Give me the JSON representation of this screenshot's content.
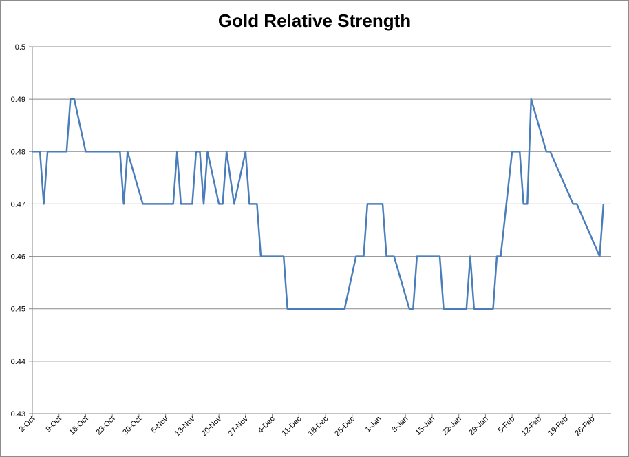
{
  "chart_data": {
    "type": "line",
    "title": "Gold Relative Strength",
    "xlabel": "",
    "ylabel": "",
    "ylim": [
      0.43,
      0.5
    ],
    "y_ticks": [
      "0.43",
      "0.44",
      "0.45",
      "0.46",
      "0.47",
      "0.48",
      "0.49",
      "0.5"
    ],
    "x_range": [
      "2-Oct",
      "3-Mar"
    ],
    "x_ticks": [
      "2-Oct",
      "9-Oct",
      "16-Oct",
      "23-Oct",
      "30-Oct",
      "6-Nov",
      "13-Nov",
      "20-Nov",
      "27-Nov",
      "4-Dec",
      "11-Dec",
      "18-Dec",
      "25-Dec",
      "1-Jan",
      "8-Jan",
      "15-Jan",
      "22-Jan",
      "29-Jan",
      "5-Feb",
      "12-Feb",
      "19-Feb",
      "26-Feb"
    ],
    "grid": true,
    "legend": "none",
    "line_color": "#4a7ebb",
    "series": [
      {
        "x": [
          "2-Oct",
          "4-Oct",
          "5-Oct",
          "6-Oct",
          "11-Oct",
          "12-Oct",
          "13-Oct",
          "16-Oct",
          "25-Oct",
          "26-Oct",
          "27-Oct",
          "31-Oct",
          "8-Nov",
          "9-Nov",
          "10-Nov",
          "13-Nov",
          "14-Nov",
          "15-Nov",
          "16-Nov",
          "17-Nov",
          "20-Nov",
          "21-Nov",
          "22-Nov",
          "24-Nov",
          "27-Nov",
          "28-Nov",
          "30-Nov",
          "1-Dec",
          "7-Dec",
          "8-Dec",
          "23-Dec",
          "26-Dec",
          "28-Dec",
          "29-Dec",
          "2-Jan",
          "3-Jan",
          "5-Jan",
          "9-Jan",
          "10-Jan",
          "11-Jan",
          "17-Jan",
          "18-Jan",
          "24-Jan",
          "25-Jan",
          "26-Jan",
          "31-Jan",
          "1-Feb",
          "2-Feb",
          "5-Feb",
          "6-Feb",
          "7-Feb",
          "8-Feb",
          "9-Feb",
          "10-Feb",
          "14-Feb",
          "15-Feb",
          "21-Feb",
          "22-Feb",
          "28-Feb",
          "1-Mar"
        ],
        "values": [
          0.48,
          0.48,
          0.47,
          0.48,
          0.48,
          0.49,
          0.49,
          0.48,
          0.48,
          0.47,
          0.48,
          0.47,
          0.47,
          0.48,
          0.47,
          0.47,
          0.48,
          0.48,
          0.47,
          0.48,
          0.47,
          0.47,
          0.48,
          0.47,
          0.48,
          0.47,
          0.47,
          0.46,
          0.46,
          0.45,
          0.45,
          0.46,
          0.46,
          0.47,
          0.47,
          0.46,
          0.46,
          0.45,
          0.45,
          0.46,
          0.46,
          0.45,
          0.45,
          0.46,
          0.45,
          0.45,
          0.46,
          0.46,
          0.48,
          0.48,
          0.48,
          0.47,
          0.47,
          0.49,
          0.48,
          0.48,
          0.47,
          0.47,
          0.46,
          0.47
        ]
      }
    ]
  }
}
